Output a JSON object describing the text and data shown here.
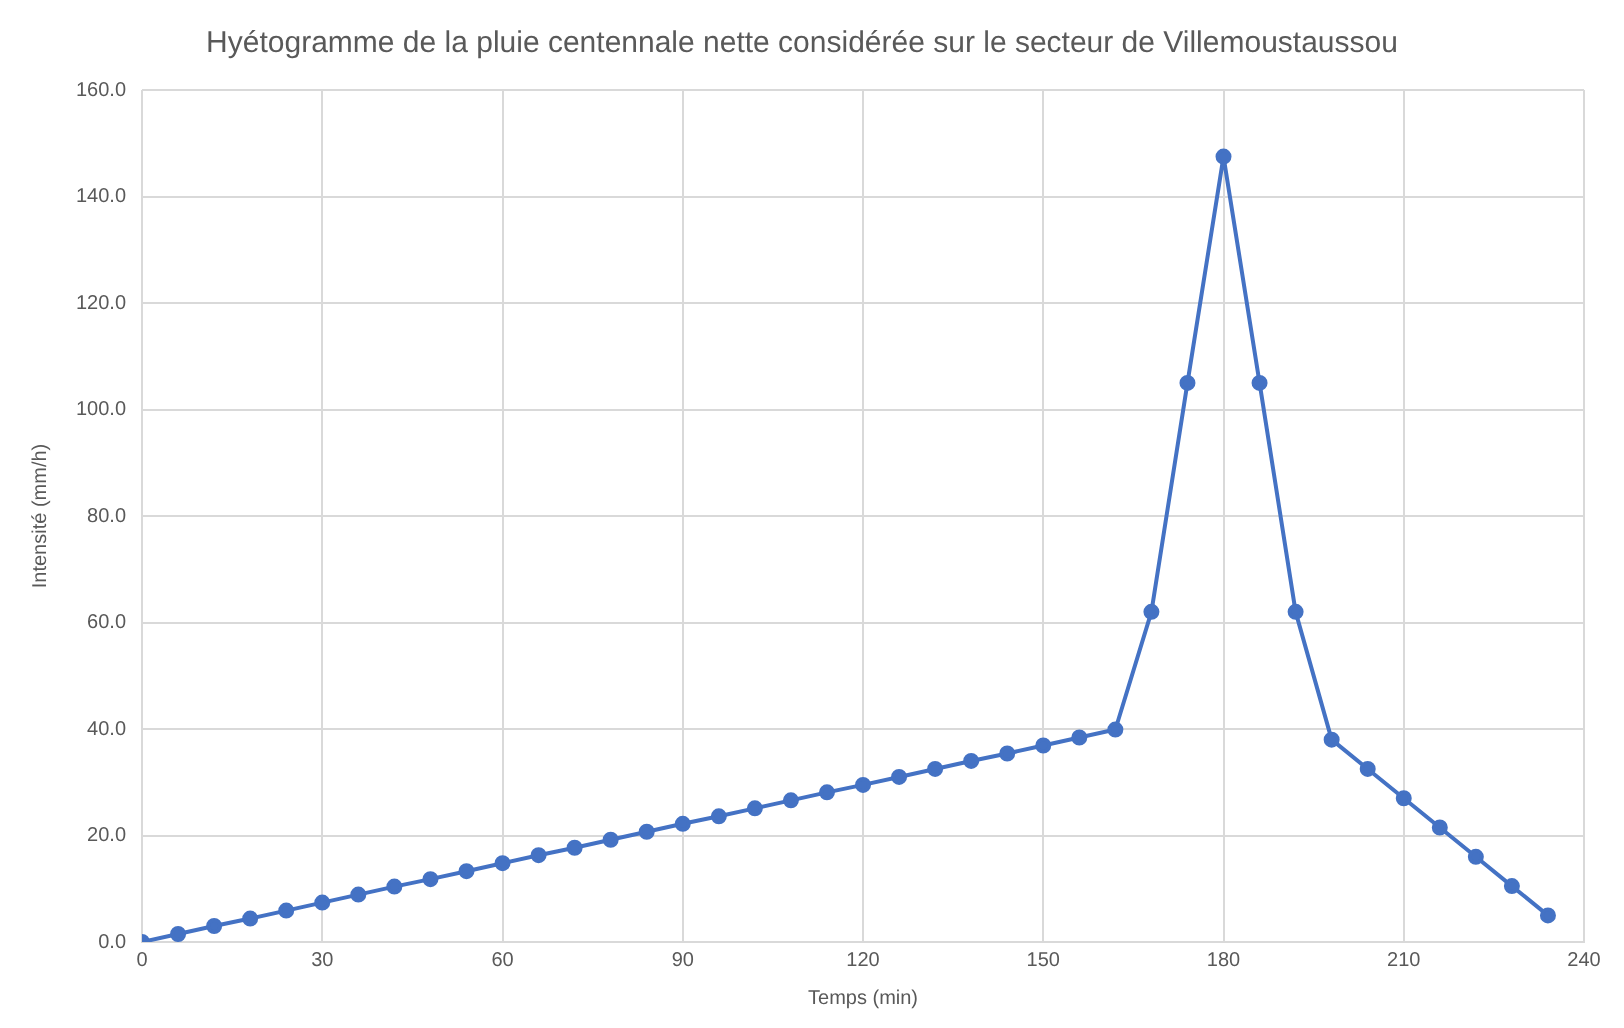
{
  "chart_data": {
    "type": "line",
    "title": "Hyétogramme de la pluie centennale nette considérée sur le secteur de Villemoustaussou",
    "xlabel": "Temps (min)",
    "ylabel": "Intensité (mm/h)",
    "x": [
      0,
      6,
      12,
      18,
      24,
      30,
      36,
      42,
      48,
      54,
      60,
      66,
      72,
      78,
      84,
      90,
      96,
      102,
      108,
      114,
      120,
      126,
      132,
      138,
      144,
      150,
      156,
      162,
      168,
      174,
      180,
      186,
      192,
      198,
      204,
      210,
      216,
      222,
      228,
      234
    ],
    "series": [
      {
        "color": "#4472c4",
        "values": [
          0,
          1.5,
          3,
          4.4,
          5.9,
          7.4,
          8.9,
          10.4,
          11.8,
          13.3,
          14.8,
          16.3,
          17.7,
          19.2,
          20.7,
          22.2,
          23.6,
          25.1,
          26.6,
          28.1,
          29.5,
          31,
          32.5,
          34,
          35.4,
          36.9,
          38.4,
          39.9,
          62,
          105,
          147.5,
          105,
          62,
          38,
          32.5,
          27,
          21.5,
          16,
          10.5,
          5
        ]
      }
    ],
    "xlim": [
      0,
      240
    ],
    "xticks": [
      0,
      30,
      60,
      90,
      120,
      150,
      180,
      210,
      240
    ],
    "ylim": [
      0,
      160
    ],
    "yticks": [
      {
        "value": 0,
        "label": "0.0"
      },
      {
        "value": 20,
        "label": "20.0"
      },
      {
        "value": 40,
        "label": "40.0"
      },
      {
        "value": 60,
        "label": "60.0"
      },
      {
        "value": 80,
        "label": "80.0"
      },
      {
        "value": 100,
        "label": "100.0"
      },
      {
        "value": 120,
        "label": "120.0"
      },
      {
        "value": 140,
        "label": "140.0"
      },
      {
        "value": 160,
        "label": "160.0"
      }
    ],
    "grid": true,
    "legend": false,
    "marker": "circle",
    "line_style": "solid"
  }
}
